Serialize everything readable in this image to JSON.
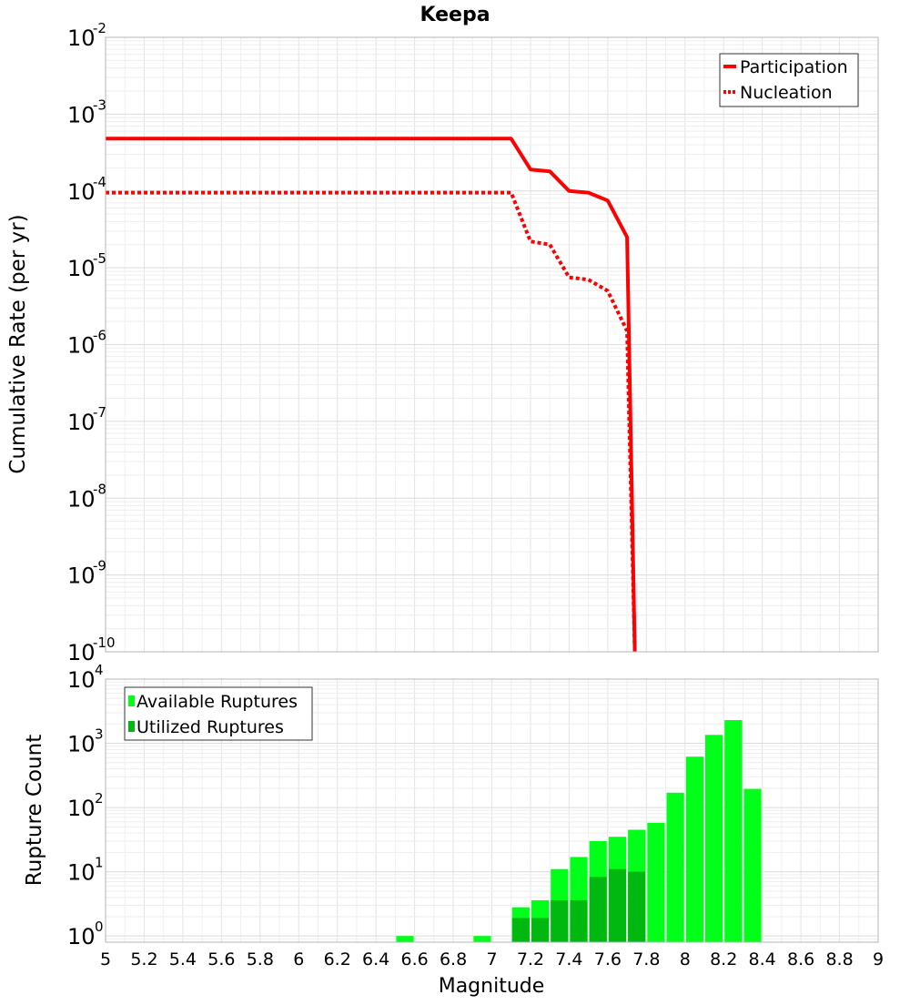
{
  "chart_data": [
    {
      "type": "line",
      "title": "Keepa",
      "ylabel": "Cumulative Rate (per yr)",
      "xlabel": "",
      "x_range": [
        5,
        9
      ],
      "y_scale": "log",
      "ylim": [
        1e-10,
        0.01
      ],
      "y_tick_exponents": [
        -2,
        -3,
        -4,
        -5,
        -6,
        -7,
        -8,
        -9,
        -10
      ],
      "y_tick_base": "10",
      "grid": true,
      "legend_position": "top-right",
      "series": [
        {
          "name": "Participation",
          "style": "solid",
          "color": "#ff0000",
          "x": [
            5.0,
            7.1,
            7.2,
            7.3,
            7.4,
            7.5,
            7.6,
            7.7,
            7.74
          ],
          "y": [
            0.00048,
            0.00048,
            0.00019,
            0.00018,
            0.0001,
            9.5e-05,
            7.5e-05,
            2.5e-05,
            1e-10
          ]
        },
        {
          "name": "Nucleation",
          "style": "dotted",
          "color": "#ff0000",
          "x": [
            5.0,
            7.1,
            7.2,
            7.3,
            7.4,
            7.5,
            7.6,
            7.7,
            7.74
          ],
          "y": [
            9.5e-05,
            9.5e-05,
            2.2e-05,
            2e-05,
            7.5e-06,
            7e-06,
            5e-06,
            1.5e-06,
            1e-10
          ]
        }
      ]
    },
    {
      "type": "bar",
      "title": "",
      "ylabel": "Rupture Count",
      "xlabel": "Magnitude",
      "x_range": [
        5,
        9
      ],
      "x_ticks": [
        "5",
        "5.2",
        "5.4",
        "5.6",
        "5.8",
        "6",
        "6.2",
        "6.4",
        "6.6",
        "6.8",
        "7",
        "7.2",
        "7.4",
        "7.6",
        "7.8",
        "8",
        "8.2",
        "8.4",
        "8.6",
        "8.8",
        "9"
      ],
      "y_scale": "log",
      "ylim": [
        0.8,
        10000
      ],
      "y_tick_exponents": [
        4,
        3,
        2,
        1,
        0
      ],
      "y_tick_base": "10",
      "grid": true,
      "legend_position": "top-left",
      "bin_width": 0.1,
      "series": [
        {
          "name": "Available Ruptures",
          "color": "#00ff19",
          "x": [
            6.55,
            6.95,
            7.15,
            7.25,
            7.35,
            7.45,
            7.55,
            7.65,
            7.75,
            7.85,
            7.95,
            8.05,
            8.15,
            8.25,
            8.35
          ],
          "values": [
            1,
            1,
            2.8,
            3.6,
            11,
            17,
            30,
            35,
            45,
            58,
            170,
            620,
            1350,
            2300,
            195
          ]
        },
        {
          "name": "Utilized Ruptures",
          "color": "#00b80f",
          "x": [
            7.15,
            7.25,
            7.35,
            7.45,
            7.55,
            7.65,
            7.75
          ],
          "values": [
            1.9,
            1.9,
            3.6,
            3.6,
            8.3,
            11,
            10
          ]
        }
      ]
    }
  ]
}
